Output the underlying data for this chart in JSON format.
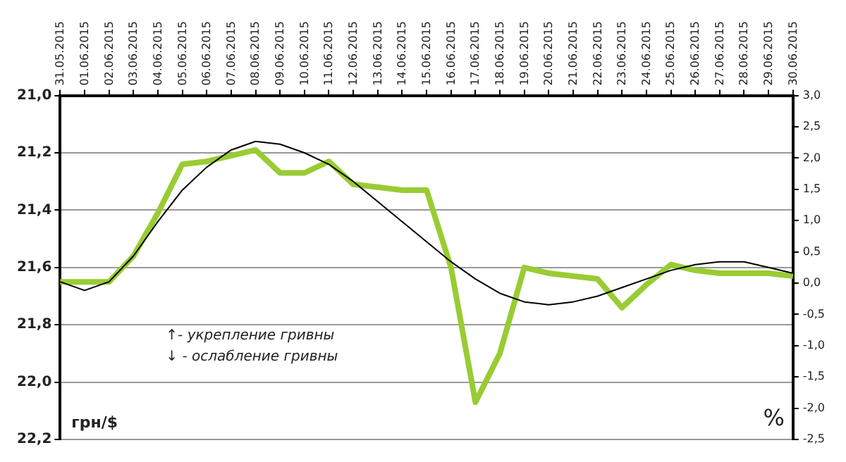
{
  "chart_data": {
    "type": "line",
    "categories": [
      "31.05.2015",
      "01.06.2015",
      "02.06.2015",
      "03.06.2015",
      "04.06.2015",
      "05.06.2015",
      "06.06.2015",
      "07.06.2015",
      "08.06.2015",
      "09.06.2015",
      "10.06.2015",
      "11.06.2015",
      "12.06.2015",
      "13.06.2015",
      "14.06.2015",
      "15.06.2015",
      "16.06.2015",
      "17.06.2015",
      "18.06.2015",
      "19.06.2015",
      "20.06.2015",
      "21.06.2015",
      "22.06.2015",
      "23.06.2015",
      "24.06.2015",
      "25.06.2015",
      "26.06.2015",
      "27.06.2015",
      "28.06.2015",
      "29.06.2015",
      "30.06.2015"
    ],
    "series": [
      {
        "color": "#99cc33",
        "values": [
          21.65,
          21.65,
          21.65,
          21.56,
          21.41,
          21.24,
          21.23,
          21.21,
          21.19,
          21.27,
          21.27,
          21.23,
          21.31,
          21.32,
          21.33,
          21.33,
          21.6,
          22.07,
          21.9,
          21.6,
          21.62,
          21.63,
          21.64,
          21.74,
          21.66,
          21.59,
          21.61,
          21.62,
          21.62,
          21.62,
          21.63
        ]
      },
      {
        "color": "#000000",
        "values": [
          21.65,
          21.68,
          21.65,
          21.56,
          21.44,
          21.33,
          21.25,
          21.19,
          21.16,
          21.17,
          21.2,
          21.24,
          21.3,
          21.37,
          21.44,
          21.51,
          21.58,
          21.64,
          21.69,
          21.72,
          21.73,
          21.72,
          21.7,
          21.67,
          21.64,
          21.61,
          21.59,
          21.58,
          21.58,
          21.6,
          21.62
        ]
      }
    ],
    "ylim": [
      22.2,
      21.0
    ],
    "yticks": [
      {
        "value": 21.0,
        "label": "21,0"
      },
      {
        "value": 21.2,
        "label": "21,2"
      },
      {
        "value": 21.4,
        "label": "21,4"
      },
      {
        "value": 21.6,
        "label": "21,6"
      },
      {
        "value": 21.8,
        "label": "21,8"
      },
      {
        "value": 22.0,
        "label": "22,0"
      },
      {
        "value": 22.2,
        "label": "22,2"
      }
    ],
    "y2lim": [
      -2.5,
      3.0
    ],
    "y2ticks": [
      {
        "value": 3.0,
        "label": "3,0"
      },
      {
        "value": 2.5,
        "label": "2,5"
      },
      {
        "value": 2.0,
        "label": "2,0"
      },
      {
        "value": 1.5,
        "label": "1,5"
      },
      {
        "value": 1.0,
        "label": "1,0"
      },
      {
        "value": 0.5,
        "label": "0,5"
      },
      {
        "value": 0.0,
        "label": "0,0"
      },
      {
        "value": -0.5,
        "label": "-0,5"
      },
      {
        "value": -1.0,
        "label": "-1,0"
      },
      {
        "value": -1.5,
        "label": "-1,5"
      },
      {
        "value": -2.0,
        "label": "-2,0"
      },
      {
        "value": -2.5,
        "label": "-2,5"
      }
    ],
    "ylabel": "грн/$",
    "y2label": "%",
    "annotations": [
      "↑- укрепление гривны",
      "↓ - ослабление гривны"
    ],
    "grid": "y",
    "legend": false,
    "marker": "none"
  }
}
